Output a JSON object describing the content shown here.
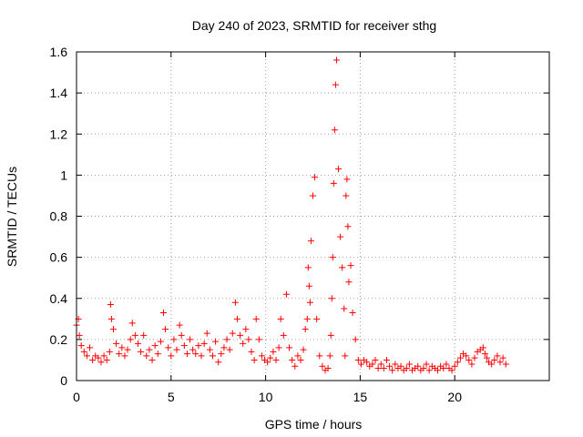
{
  "chart_data": {
    "type": "scatter",
    "title": "Day 240 of 2023, SRMTID for receiver sthg",
    "xlabel": "GPS time / hours",
    "ylabel": "SRMTID / TECUs",
    "xlim": [
      0,
      25
    ],
    "ylim": [
      0,
      1.6
    ],
    "x_ticks": [
      0,
      5,
      10,
      15,
      20
    ],
    "x_tick_labels": [
      "0",
      "5",
      "10",
      "15",
      "20"
    ],
    "y_ticks": [
      0,
      0.2,
      0.4,
      0.6,
      0.8,
      1.0,
      1.2,
      1.4,
      1.6
    ],
    "y_tick_labels": [
      "0",
      "0.2",
      "0.4",
      "0.6",
      "0.8",
      "1",
      "1.2",
      "1.4",
      "1.6"
    ],
    "grid": "dotted",
    "marker": "+",
    "color": "#ff0000",
    "series": [
      {
        "name": "SRMTID",
        "x": [
          0.0,
          0.1,
          0.15,
          0.25,
          0.4,
          0.55,
          0.7,
          0.85,
          1.0,
          1.15,
          1.3,
          1.45,
          1.6,
          1.75,
          1.8,
          1.85,
          1.95,
          2.1,
          2.25,
          2.4,
          2.55,
          2.7,
          2.85,
          2.95,
          3.1,
          3.25,
          3.4,
          3.55,
          3.7,
          3.85,
          4.0,
          4.15,
          4.3,
          4.45,
          4.6,
          4.7,
          4.85,
          5.0,
          5.15,
          5.3,
          5.45,
          5.55,
          5.7,
          5.85,
          6.0,
          6.15,
          6.3,
          6.45,
          6.6,
          6.75,
          6.9,
          7.05,
          7.2,
          7.35,
          7.5,
          7.65,
          7.8,
          7.95,
          8.1,
          8.25,
          8.4,
          8.5,
          8.65,
          8.8,
          8.95,
          9.1,
          9.25,
          9.4,
          9.5,
          9.65,
          9.8,
          9.95,
          10.1,
          10.25,
          10.4,
          10.55,
          10.7,
          10.8,
          10.95,
          11.1,
          11.25,
          11.4,
          11.55,
          11.7,
          11.85,
          12.0,
          12.1,
          12.2,
          12.25,
          12.3,
          12.35,
          12.4,
          12.5,
          12.6,
          12.7,
          12.85,
          13.0,
          13.15,
          13.3,
          13.4,
          13.45,
          13.5,
          13.55,
          13.6,
          13.65,
          13.7,
          13.75,
          13.85,
          13.95,
          14.05,
          14.15,
          14.2,
          14.25,
          14.3,
          14.35,
          14.4,
          14.5,
          14.6,
          14.75,
          14.9,
          15.05,
          15.2,
          15.35,
          15.5,
          15.65,
          15.8,
          15.95,
          16.1,
          16.25,
          16.4,
          16.55,
          16.7,
          16.85,
          17.0,
          17.15,
          17.3,
          17.45,
          17.6,
          17.75,
          17.9,
          18.05,
          18.2,
          18.35,
          18.5,
          18.65,
          18.8,
          18.95,
          19.1,
          19.25,
          19.4,
          19.55,
          19.7,
          19.85,
          20.0,
          20.15,
          20.3,
          20.45,
          20.6,
          20.75,
          20.9,
          21.05,
          21.2,
          21.35,
          21.5,
          21.6,
          21.7,
          21.8,
          21.95,
          22.1,
          22.25,
          22.4,
          22.55,
          22.7
        ],
        "y": [
          0.27,
          0.3,
          0.22,
          0.17,
          0.14,
          0.12,
          0.16,
          0.1,
          0.12,
          0.11,
          0.09,
          0.12,
          0.1,
          0.14,
          0.37,
          0.3,
          0.25,
          0.18,
          0.13,
          0.16,
          0.12,
          0.15,
          0.2,
          0.28,
          0.22,
          0.18,
          0.14,
          0.22,
          0.12,
          0.15,
          0.1,
          0.17,
          0.13,
          0.19,
          0.33,
          0.25,
          0.16,
          0.12,
          0.2,
          0.15,
          0.27,
          0.22,
          0.17,
          0.13,
          0.2,
          0.15,
          0.13,
          0.17,
          0.12,
          0.18,
          0.23,
          0.15,
          0.12,
          0.19,
          0.09,
          0.13,
          0.16,
          0.2,
          0.15,
          0.23,
          0.38,
          0.3,
          0.22,
          0.18,
          0.25,
          0.2,
          0.14,
          0.1,
          0.3,
          0.2,
          0.12,
          0.1,
          0.09,
          0.11,
          0.14,
          0.1,
          0.16,
          0.3,
          0.22,
          0.42,
          0.16,
          0.1,
          0.07,
          0.12,
          0.1,
          0.15,
          0.25,
          0.3,
          0.55,
          0.46,
          0.38,
          0.68,
          0.9,
          0.99,
          0.3,
          0.12,
          0.07,
          0.05,
          0.06,
          0.12,
          0.22,
          0.4,
          0.6,
          0.96,
          1.22,
          1.44,
          1.56,
          1.03,
          0.7,
          0.55,
          0.35,
          0.12,
          0.9,
          0.98,
          0.75,
          0.48,
          0.56,
          0.33,
          0.2,
          0.1,
          0.08,
          0.1,
          0.09,
          0.07,
          0.08,
          0.1,
          0.06,
          0.08,
          0.06,
          0.1,
          0.07,
          0.05,
          0.08,
          0.06,
          0.07,
          0.05,
          0.06,
          0.08,
          0.05,
          0.06,
          0.07,
          0.05,
          0.06,
          0.08,
          0.05,
          0.07,
          0.06,
          0.05,
          0.07,
          0.06,
          0.08,
          0.06,
          0.05,
          0.07,
          0.09,
          0.11,
          0.13,
          0.12,
          0.1,
          0.08,
          0.11,
          0.14,
          0.15,
          0.16,
          0.13,
          0.11,
          0.09,
          0.08,
          0.1,
          0.12,
          0.09,
          0.11,
          0.08
        ]
      }
    ]
  }
}
